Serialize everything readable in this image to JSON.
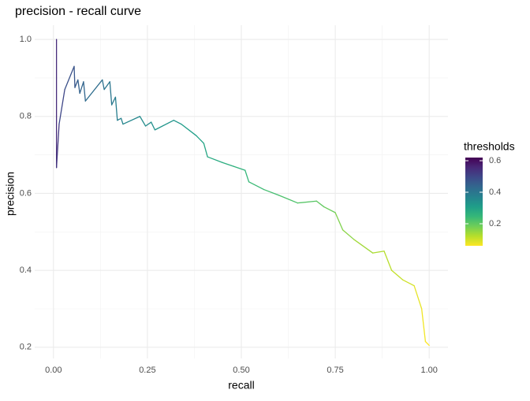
{
  "chart_data": {
    "type": "line",
    "title": "precision - recall curve",
    "x_label": "recall",
    "y_label": "precision",
    "x": [
      0.008,
      0.008,
      0.015,
      0.03,
      0.055,
      0.057,
      0.065,
      0.07,
      0.08,
      0.085,
      0.13,
      0.135,
      0.15,
      0.155,
      0.165,
      0.17,
      0.18,
      0.185,
      0.23,
      0.245,
      0.26,
      0.27,
      0.32,
      0.34,
      0.38,
      0.4,
      0.41,
      0.45,
      0.48,
      0.51,
      0.52,
      0.56,
      0.6,
      0.65,
      0.7,
      0.72,
      0.75,
      0.77,
      0.8,
      0.85,
      0.88,
      0.9,
      0.93,
      0.96,
      0.98,
      0.99,
      1.0
    ],
    "y": [
      1.0,
      0.667,
      0.78,
      0.87,
      0.93,
      0.875,
      0.895,
      0.86,
      0.89,
      0.84,
      0.895,
      0.87,
      0.89,
      0.83,
      0.85,
      0.79,
      0.795,
      0.78,
      0.8,
      0.775,
      0.785,
      0.765,
      0.79,
      0.78,
      0.75,
      0.73,
      0.695,
      0.68,
      0.67,
      0.66,
      0.63,
      0.61,
      0.595,
      0.575,
      0.58,
      0.565,
      0.55,
      0.505,
      0.48,
      0.445,
      0.45,
      0.4,
      0.375,
      0.36,
      0.3,
      0.215,
      0.205
    ],
    "thresholds": [
      0.62,
      0.55,
      0.53,
      0.5,
      0.48,
      0.47,
      0.46,
      0.45,
      0.44,
      0.44,
      0.42,
      0.41,
      0.4,
      0.4,
      0.39,
      0.38,
      0.38,
      0.37,
      0.36,
      0.35,
      0.35,
      0.34,
      0.33,
      0.33,
      0.31,
      0.3,
      0.29,
      0.28,
      0.27,
      0.26,
      0.25,
      0.24,
      0.23,
      0.22,
      0.21,
      0.2,
      0.19,
      0.17,
      0.16,
      0.14,
      0.13,
      0.12,
      0.11,
      0.1,
      0.08,
      0.07,
      0.06
    ],
    "color_legend_title": "thresholds",
    "colormap": [
      "#fde725",
      "#b5de2b",
      "#6ece58",
      "#35b779",
      "#1f9e89",
      "#26828e",
      "#31688e",
      "#3e4989",
      "#482878",
      "#440154"
    ],
    "clim": [
      0.06,
      0.62
    ],
    "cticks": [
      0.2,
      0.4,
      0.6
    ],
    "xlim": [
      -0.05,
      1.05
    ],
    "ylim": [
      0.171,
      1.037
    ],
    "xticks": [
      {
        "value": 0,
        "label": "0.00"
      },
      {
        "value": 0.25,
        "label": "0.25"
      },
      {
        "value": 0.5,
        "label": "0.50"
      },
      {
        "value": 0.75,
        "label": "0.75"
      },
      {
        "value": 1,
        "label": "1.00"
      }
    ],
    "yticks": [
      0.2,
      0.4,
      0.6,
      0.8,
      {
        "value": 1,
        "label": "1.0"
      }
    ],
    "x_minor_ticks": [
      0.125,
      0.375,
      0.625,
      0.875
    ],
    "y_minor_ticks": [
      0.3,
      0.5,
      0.7,
      0.9
    ],
    "grid": true
  }
}
